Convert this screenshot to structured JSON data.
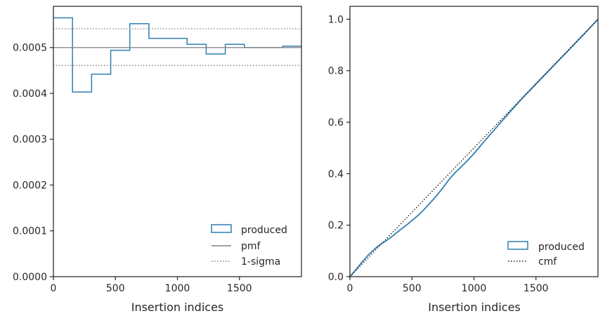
{
  "colors": {
    "produced": "#2f7fb0",
    "pmf": "#808080",
    "sigma": "#808080",
    "cmf": "#1a1a1a",
    "axes": "#262626"
  },
  "chart_data": [
    {
      "type": "line",
      "subtype": "step-histogram",
      "xlabel": "Insertion indices",
      "ylabel": "",
      "xlim": [
        0,
        2000
      ],
      "ylim": [
        0,
        0.00059
      ],
      "xticks": [
        0,
        500,
        1000,
        1500
      ],
      "xtick_labels": [
        "0",
        "500",
        "1000",
        "1500"
      ],
      "yticks": [
        0,
        0.0001,
        0.0002,
        0.0003,
        0.0004,
        0.0005
      ],
      "ytick_labels": [
        "0.0000",
        "0.0001",
        "0.0002",
        "0.0003",
        "0.0004",
        "0.0005"
      ],
      "legend": {
        "placement": "lower-right",
        "entries": [
          "produced",
          "pmf",
          "1-sigma"
        ]
      },
      "series": [
        {
          "name": "produced",
          "style": "step",
          "bin_edges": [
            0,
            154,
            308,
            462,
            616,
            770,
            924,
            1078,
            1232,
            1386,
            1540,
            1694,
            1848,
            2000
          ],
          "values": [
            0.000565,
            0.000403,
            0.000442,
            0.000494,
            0.000552,
            0.00052,
            0.00052,
            0.000507,
            0.000486,
            0.000507,
            0.0005,
            0.0005,
            0.000503
          ]
        },
        {
          "name": "pmf",
          "style": "solid",
          "y": 0.0005
        },
        {
          "name": "1-sigma",
          "style": "dotted",
          "y": [
            0.000541,
            0.000461
          ]
        }
      ]
    },
    {
      "type": "line",
      "xlabel": "Insertion indices",
      "ylabel": "",
      "xlim": [
        0,
        2000
      ],
      "ylim": [
        0,
        1.05
      ],
      "xticks": [
        0,
        500,
        1000,
        1500
      ],
      "xtick_labels": [
        "0",
        "500",
        "1000",
        "1500"
      ],
      "yticks": [
        0,
        0.2,
        0.4,
        0.6,
        0.8,
        1.0
      ],
      "ytick_labels": [
        "0.0",
        "0.2",
        "0.4",
        "0.6",
        "0.8",
        "1.0"
      ],
      "legend": {
        "placement": "lower-right",
        "entries": [
          "produced",
          "cmf"
        ]
      },
      "series": [
        {
          "name": "produced",
          "style": "solid",
          "x": [
            0,
            50,
            100,
            150,
            200,
            250,
            300,
            350,
            400,
            450,
            500,
            550,
            600,
            650,
            700,
            750,
            800,
            850,
            900,
            950,
            1000,
            1100,
            1200,
            1300,
            1400,
            1500,
            1600,
            1700,
            1800,
            1900,
            2000
          ],
          "y": [
            0,
            0.028,
            0.058,
            0.085,
            0.108,
            0.127,
            0.142,
            0.16,
            0.18,
            0.198,
            0.218,
            0.238,
            0.262,
            0.288,
            0.315,
            0.345,
            0.378,
            0.405,
            0.428,
            0.452,
            0.478,
            0.535,
            0.59,
            0.645,
            0.698,
            0.748,
            0.798,
            0.848,
            0.898,
            0.948,
            1.0
          ]
        },
        {
          "name": "cmf",
          "style": "dotted",
          "x": [
            0,
            2000
          ],
          "y": [
            0,
            1.0
          ]
        }
      ]
    }
  ]
}
